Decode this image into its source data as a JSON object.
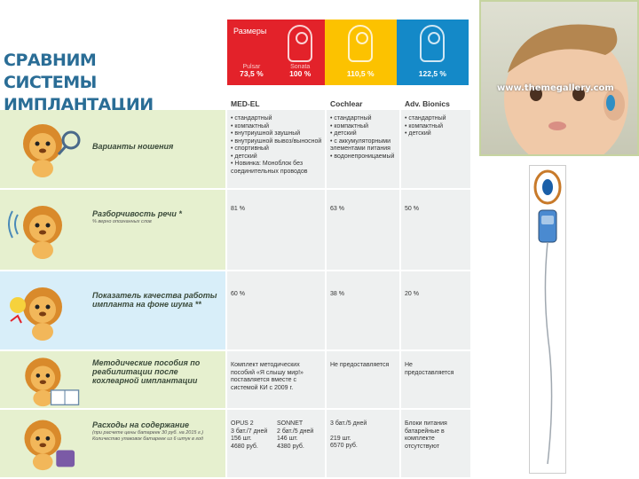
{
  "title": {
    "line1": "СРАВНИМ",
    "line2": "СИСТЕМЫ ИМПЛАНТАЦИИ"
  },
  "sizes": {
    "heading": "Размеры",
    "medel_models": [
      "Pulsar",
      "Sonata"
    ],
    "medel_pct": [
      "73,5 %",
      "100 %"
    ],
    "cochlear_pct": "110,5 %",
    "bionics_pct": "122,5 %"
  },
  "brands": {
    "medel": "MED-EL",
    "cochlear": "Cochlear",
    "bionics": "Adv. Bionics"
  },
  "rows": [
    {
      "label": "Варианты ношения",
      "note": "",
      "medel": [
        "стандартный",
        "компактный",
        "внутриушной заушный",
        "внутриушной вывоз/выносной",
        "спортивный",
        "детский",
        "Новинка: Моноблок без соединительных проводов"
      ],
      "cochlear": [
        "стандартный",
        "компактный",
        "детский",
        "с аккумуляторными элементами питания",
        "водонепроницаемый"
      ],
      "bionics": [
        "стандартный",
        "компактный",
        "детский"
      ]
    },
    {
      "label": "Разборчивость речи *",
      "note": "% верно опознанных слов",
      "medel": "81 %",
      "cochlear": "63 %",
      "bionics": "50 %"
    },
    {
      "label": "Показатель качества работы импланта на фоне шума **",
      "note": "",
      "medel": "60 %",
      "cochlear": "38 %",
      "bionics": "20 %"
    },
    {
      "label": "Методические пособия по реабилитации после кохлеарной имплантации",
      "note": "",
      "medel": "Комплект методических пособий «Я слышу мир!» поставляется вместе с системой КИ с 2009 г.",
      "cochlear": "Не предоставляется",
      "bionics": "Не предоставляется"
    },
    {
      "label": "Расходы на содержание",
      "note": "(при расчете цены батареек 30 руб. на 2015 г.) Количество упаковок батареек из 6 штук в год",
      "medel_opus": {
        "name": "OPUS 2",
        "batt": "3 бат./7 дней",
        "qty": "156 шт.",
        "cost": "4680 руб."
      },
      "medel_sonnet": {
        "name": "SONNET",
        "batt": "2 бат./5 дней",
        "qty": "146 шт.",
        "cost": "4380 руб."
      },
      "cochlear": {
        "batt": "3 бат./5 дней",
        "qty": "219 шт.",
        "cost": "6570 руб."
      },
      "bionics": "Блоки питания батарейные в комплекте отсутствуют"
    }
  ],
  "photo": {
    "url_text": "www.themegallery.com"
  },
  "colors": {
    "red": "#e3222a",
    "yellow": "#fcc200",
    "blue": "#1489c8",
    "green_bg": "#e6f0cf",
    "title": "#2a6d96"
  }
}
